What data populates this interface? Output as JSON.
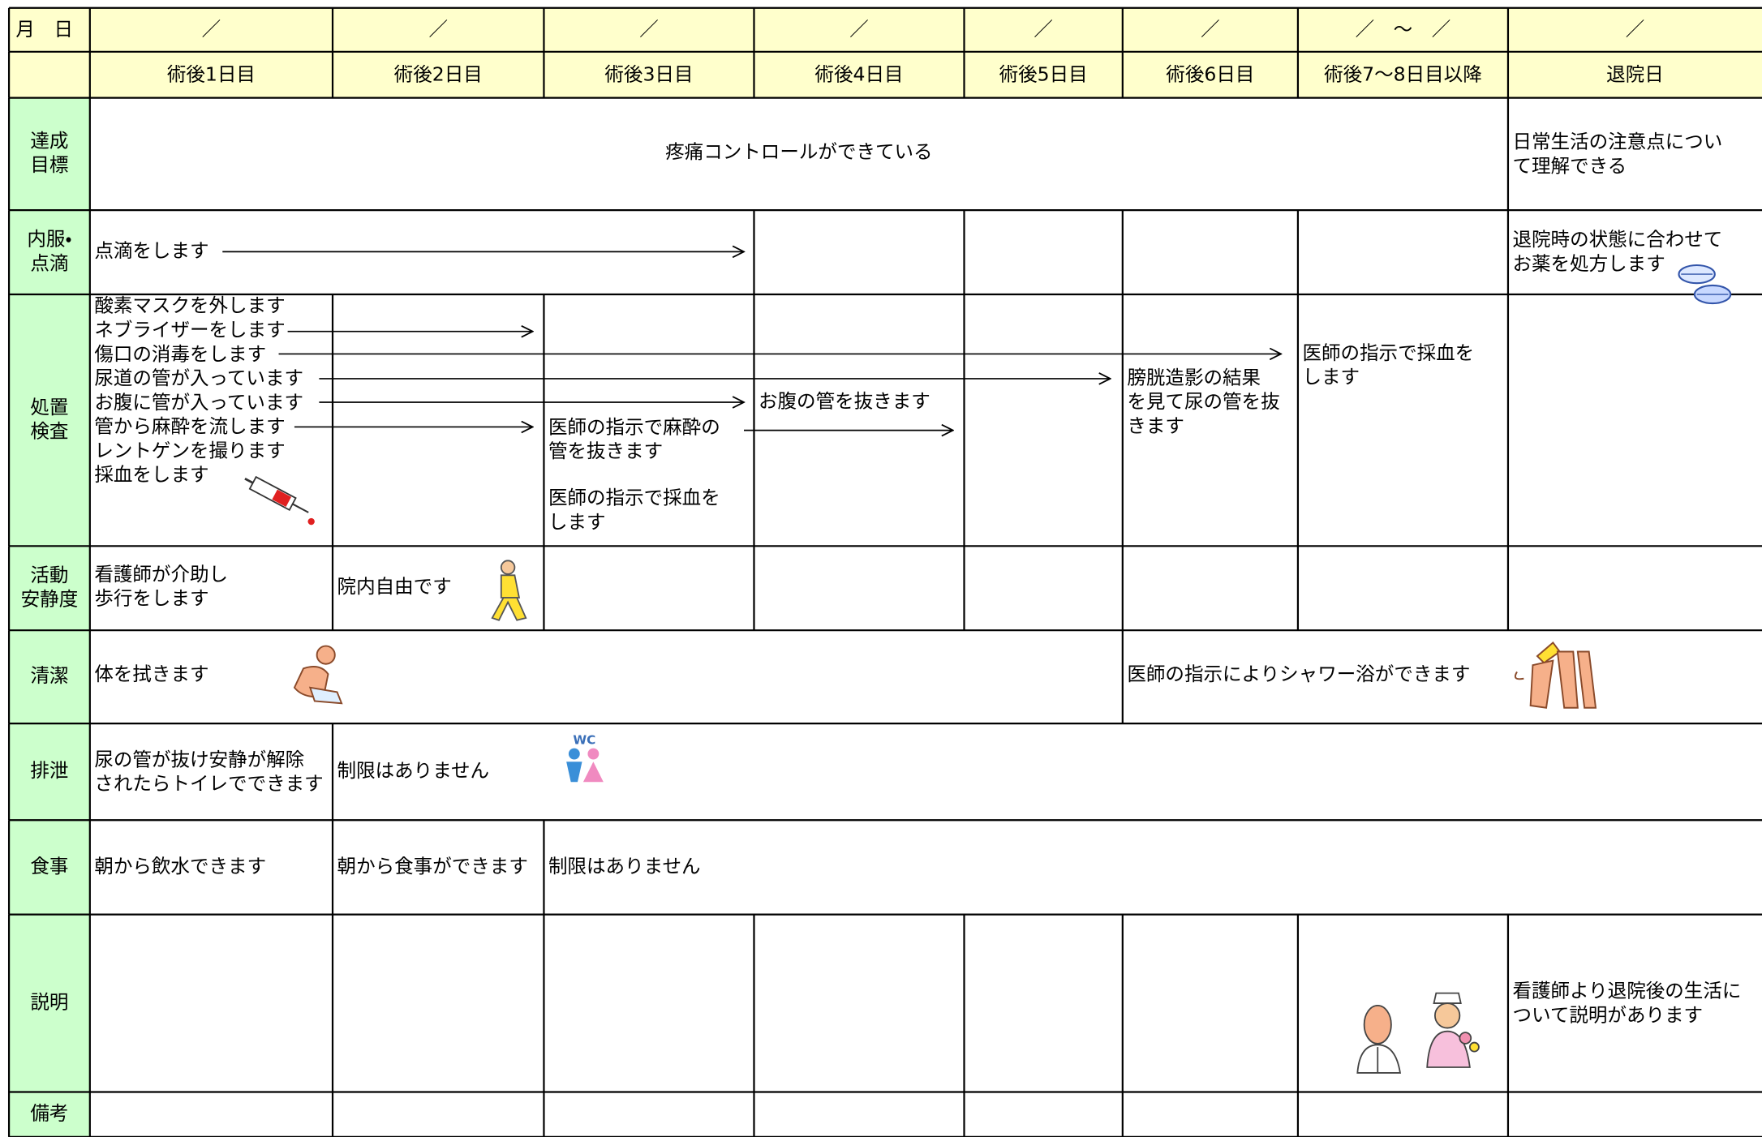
{
  "header": {
    "date_label": "月　日",
    "dates": [
      "／",
      "／",
      "／",
      "／",
      "／",
      "／",
      "／　～　／",
      "／"
    ],
    "days": [
      "術後1日目",
      "術後2日目",
      "術後3日目",
      "術後4日目",
      "術後5日目",
      "術後6日目",
      "術後7～8日目以降",
      "退院日"
    ]
  },
  "rows": [
    {
      "label": [
        "達成",
        "目標"
      ],
      "cells": [
        [
          "疼痛コントロールができている"
        ],
        [
          "日常生活の注意点につい",
          "て理解できる"
        ]
      ]
    },
    {
      "label": [
        "内服・",
        "点滴"
      ],
      "cells": [
        [
          "点滴をします"
        ],
        [
          "退院時の状態に合わせて",
          "お薬を処方します"
        ]
      ]
    },
    {
      "label": [
        "処置",
        "検査"
      ],
      "cells": [
        [
          "酸素マスクを外します",
          "ネブライザーをします",
          "傷口の消毒をします",
          "尿道の管が入っています",
          "お腹に管が入っています",
          "管から麻酔を流します",
          "レントゲンを撮ります",
          "採血をします"
        ],
        [
          "医師の指示で麻酔の",
          "管を抜きます"
        ],
        [
          "医師の指示で採血を",
          "します"
        ],
        [
          "お腹の管を抜きます"
        ],
        [
          "膀胱造影の結果",
          "を見て尿の管を抜",
          "きます"
        ],
        [
          "医師の指示で採血を",
          "します"
        ]
      ]
    },
    {
      "label": [
        "活動",
        "安静度"
      ],
      "cells": [
        [
          "看護師が介助し",
          "歩行をします"
        ],
        [
          "院内自由です"
        ]
      ]
    },
    {
      "label": [
        "清潔"
      ],
      "cells": [
        [
          "体を拭きます"
        ],
        [
          "医師の指示によりシャワー浴ができます"
        ]
      ]
    },
    {
      "label": [
        "排泄"
      ],
      "cells": [
        [
          "尿の管が抜け安静が解除",
          "されたらトイレでできます"
        ],
        [
          "制限はありません"
        ]
      ]
    },
    {
      "label": [
        "食事"
      ],
      "cells": [
        [
          "朝から飲水できます"
        ],
        [
          "朝から食事ができます"
        ],
        [
          "制限はありません"
        ]
      ]
    },
    {
      "label": [
        "説明"
      ],
      "cells": [
        [
          "看護師より退院後の生活に",
          "ついて説明があります"
        ]
      ]
    },
    {
      "label": [
        "備考"
      ],
      "cells": []
    }
  ],
  "wc_icon": "WC"
}
